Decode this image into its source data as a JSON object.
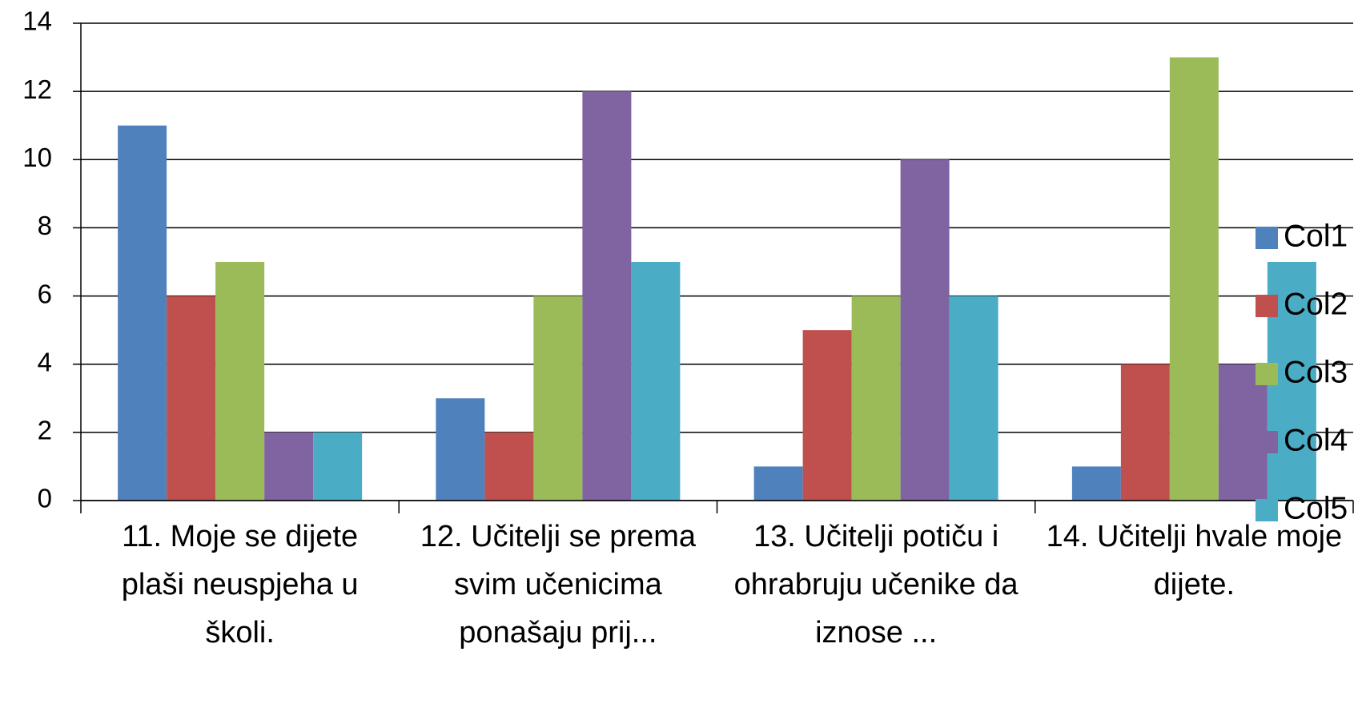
{
  "chart_data": {
    "type": "bar",
    "categories": [
      "11. Moje se dijete plaši neuspjeha u školi.",
      "12. Učitelji se prema svim učenicima ponašaju prij...",
      "13. Učitelji potiču i ohrabruju učenike da iznose ...",
      "14. Učitelji hvale moje dijete."
    ],
    "series": [
      {
        "name": "Col1",
        "color": "#4f81bd",
        "values": [
          11,
          3,
          1,
          1
        ]
      },
      {
        "name": "Col2",
        "color": "#c0504d",
        "values": [
          6,
          2,
          5,
          4
        ]
      },
      {
        "name": "Col3",
        "color": "#9bbb59",
        "values": [
          7,
          6,
          6,
          13
        ]
      },
      {
        "name": "Col4",
        "color": "#8064a2",
        "values": [
          2,
          12,
          10,
          4
        ]
      },
      {
        "name": "Col5",
        "color": "#4bacc6",
        "values": [
          2,
          7,
          6,
          7
        ]
      }
    ],
    "ylim": [
      0,
      14
    ],
    "yticks": [
      0,
      2,
      4,
      6,
      8,
      10,
      12,
      14
    ],
    "grid": true,
    "legend": "right"
  }
}
